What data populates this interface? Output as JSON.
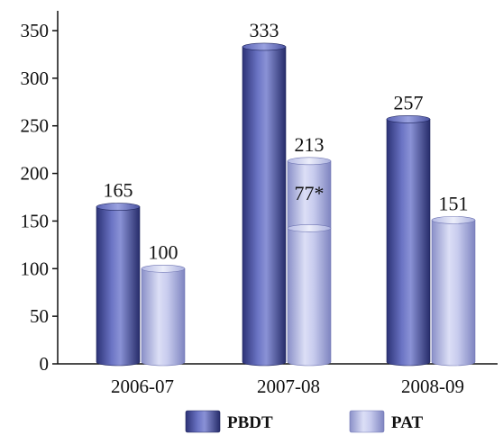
{
  "chart_data": {
    "type": "bar",
    "categories": [
      "2006-07",
      "2007-08",
      "2008-09"
    ],
    "series": [
      {
        "name": "PBDT",
        "values": [
          165,
          333,
          257
        ],
        "labels": [
          "165",
          "333",
          "257"
        ],
        "color": "#4a52a8"
      },
      {
        "name": "PAT",
        "values": [
          100,
          213,
          151
        ],
        "labels": [
          "100",
          "213",
          "151"
        ],
        "color": "#a8aede"
      }
    ],
    "annotations": [
      {
        "category": "2007-08",
        "series": "PAT",
        "value": 77,
        "text": "77*"
      }
    ],
    "ylim": [
      0,
      350
    ],
    "yticks": [
      0,
      50,
      100,
      150,
      200,
      250,
      300,
      350
    ],
    "ytick_labels": [
      "0",
      "50",
      "100",
      "150",
      "200",
      "250",
      "300",
      "350"
    ],
    "title": "",
    "xlabel": "",
    "ylabel": "",
    "legend": {
      "position": "bottom",
      "entries": [
        "PBDT",
        "PAT"
      ]
    },
    "grid": false
  }
}
